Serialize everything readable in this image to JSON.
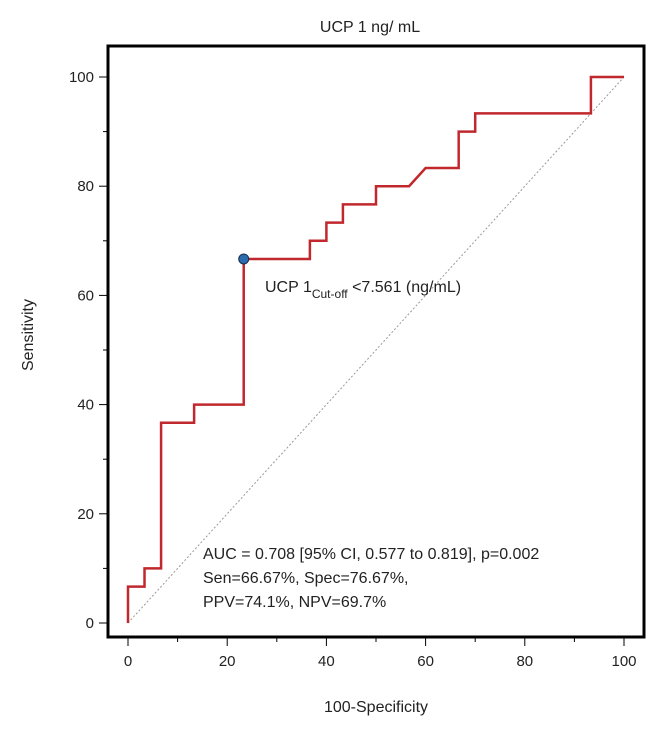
{
  "chart_data": {
    "type": "line",
    "title": "UCP 1 ng/ mL",
    "xlabel": "100-Specificity",
    "ylabel": "Sensitivity",
    "xlim": [
      0,
      100
    ],
    "ylim": [
      0,
      100
    ],
    "xticks": [
      0,
      20,
      40,
      60,
      80,
      100
    ],
    "yticks": [
      0,
      20,
      40,
      60,
      80,
      100
    ],
    "series": [
      {
        "name": "ROC curve",
        "color": "#c0282d",
        "points": [
          [
            0,
            0
          ],
          [
            0,
            6.67
          ],
          [
            3.33,
            6.67
          ],
          [
            3.33,
            10
          ],
          [
            6.67,
            10
          ],
          [
            6.67,
            36.67
          ],
          [
            13.33,
            36.67
          ],
          [
            13.33,
            40
          ],
          [
            23.33,
            40
          ],
          [
            23.33,
            66.67
          ],
          [
            36.67,
            66.67
          ],
          [
            36.67,
            70
          ],
          [
            40,
            70
          ],
          [
            40,
            73.33
          ],
          [
            43.33,
            73.33
          ],
          [
            43.33,
            76.67
          ],
          [
            50,
            76.67
          ],
          [
            50,
            80
          ],
          [
            56.67,
            80
          ],
          [
            60,
            83.33
          ],
          [
            66.67,
            83.33
          ],
          [
            66.67,
            90
          ],
          [
            70,
            90
          ],
          [
            70,
            93.33
          ],
          [
            93.33,
            93.33
          ],
          [
            93.33,
            100
          ],
          [
            100,
            100
          ]
        ]
      },
      {
        "name": "Reference line",
        "color": "#9a9a9a",
        "points": [
          [
            0,
            0
          ],
          [
            100,
            100
          ]
        ]
      }
    ],
    "cutoff_point": {
      "x": 23.33,
      "y": 66.67,
      "color": "#2b6cb0"
    },
    "cutoff_label": {
      "main": "UCP 1",
      "sub": "Cut-off",
      "rest": " <7.561 (ng/mL)"
    },
    "annotations": [
      "AUC = 0.708 [95% CI, 0.577 to 0.819], p=0.002",
      "Sen=66.67%, Spec=76.67%,",
      "PPV=74.1%, NPV=69.7%"
    ]
  }
}
